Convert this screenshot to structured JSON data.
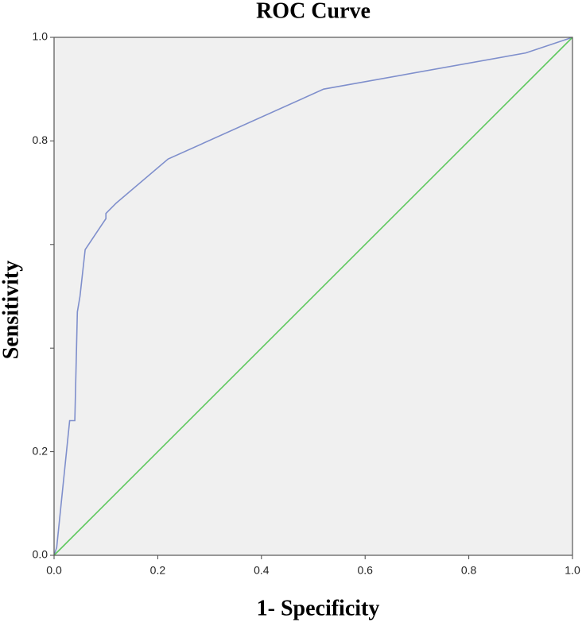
{
  "chart_data": {
    "type": "line",
    "title": "ROC Curve",
    "x_label": "1- Specificity",
    "y_label": "Sensitivity",
    "series": [
      {
        "color": "#7f8fcc",
        "x": [
          0,
          0.005,
          0.03,
          0.04,
          0.045,
          0.05,
          0.06,
          0.1,
          0.1,
          0.12,
          0.22,
          0.52,
          0.91,
          1
        ],
        "values": [
          0,
          0.015,
          0.26,
          0.26,
          0.47,
          0.5,
          0.59,
          0.65,
          0.66,
          0.68,
          0.765,
          0.9,
          0.97,
          1
        ]
      },
      {
        "color": "#5ec85e",
        "x": [
          0,
          1
        ],
        "values": [
          0,
          1
        ]
      }
    ],
    "xlim": [
      0,
      1
    ],
    "ylim": [
      0,
      1
    ],
    "xticks": [
      {
        "value": 0,
        "label": "0.0"
      },
      0.2,
      0.4,
      0.6,
      0.8,
      {
        "value": 1,
        "label": "1.0"
      }
    ],
    "yticks": [
      {
        "value": 0,
        "label": "0.0"
      },
      0.2,
      {
        "value": 0.4,
        "label": null
      },
      {
        "value": 0.6,
        "label": null
      },
      0.8,
      {
        "value": 1,
        "label": "1.0"
      }
    ],
    "background": "#f0f0f0",
    "grid": false
  }
}
